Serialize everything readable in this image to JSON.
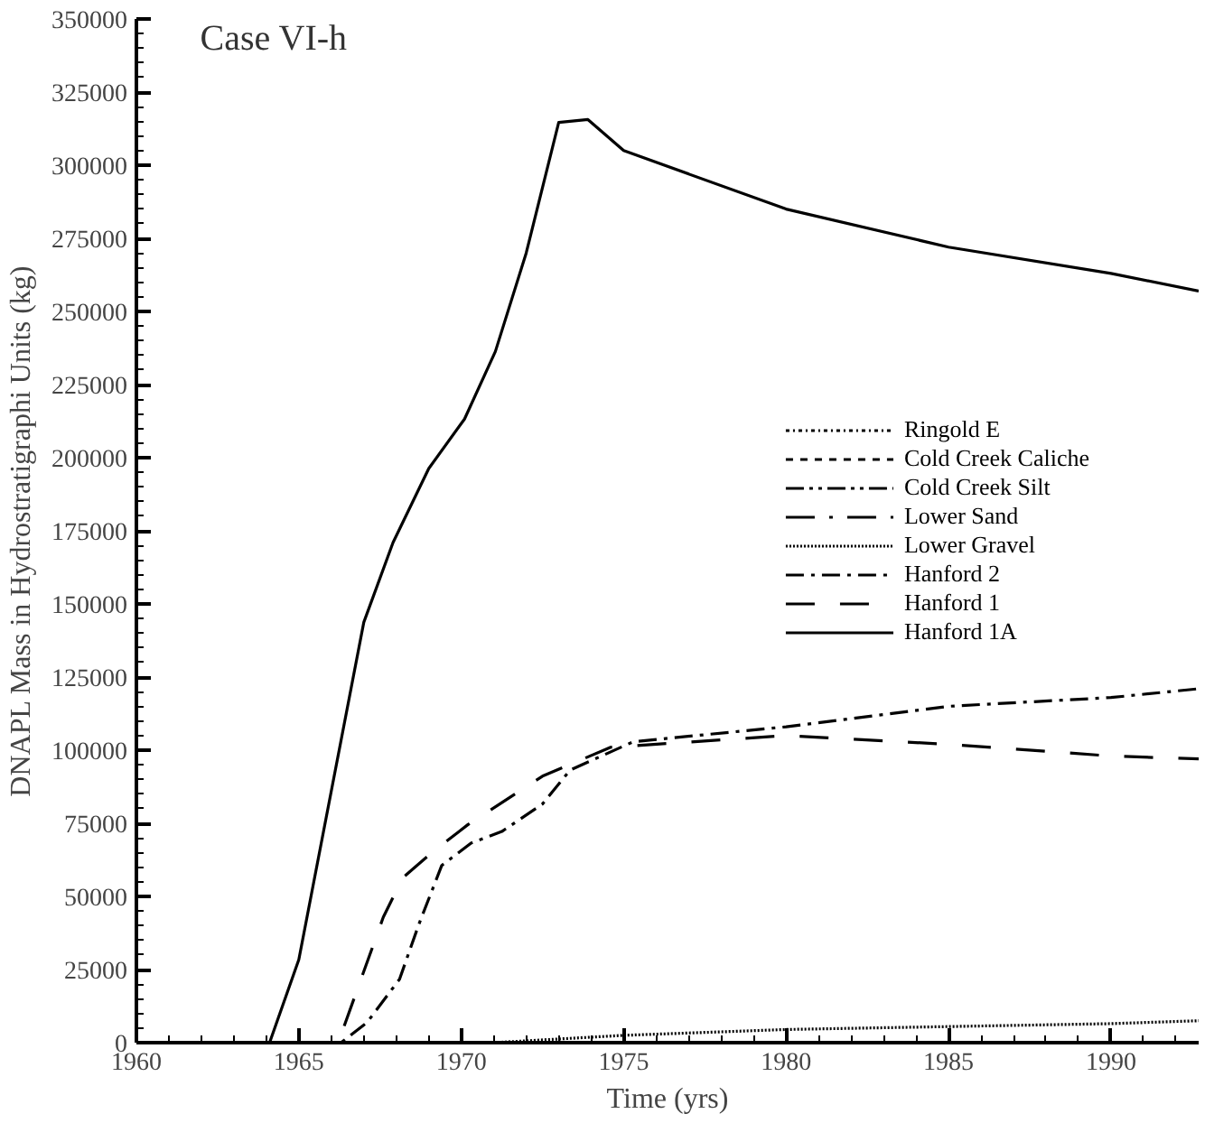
{
  "chart_data": {
    "type": "line",
    "title": "Case VI-h",
    "xlabel": "Time (yrs)",
    "ylabel": "DNAPL Mass in Hydrostratigraphi Units (kg)",
    "xlim": [
      1960,
      1992.7
    ],
    "xticks": [
      1960,
      1965,
      1970,
      1975,
      1980,
      1985,
      1990
    ],
    "ylim": [
      0,
      350000
    ],
    "yticks": [
      0,
      25000,
      50000,
      75000,
      100000,
      125000,
      150000,
      175000,
      200000,
      225000,
      250000,
      275000,
      300000,
      325000,
      350000
    ],
    "grid": false,
    "legend": "right",
    "marker": "none",
    "series": [
      {
        "name": "Ringold E",
        "color": "#000000",
        "line_style": "dotdash_fine"
      },
      {
        "name": "Cold Creek Caliche",
        "color": "#000000",
        "line_style": "dashed"
      },
      {
        "name": "Cold Creek Silt",
        "color": "#000000",
        "line_style": "dashdotdot"
      },
      {
        "name": "Lower Sand",
        "color": "#000000",
        "line_style": "longdash_dot"
      },
      {
        "name": "Lower Gravel",
        "color": "#000000",
        "line_style": "dotted",
        "x": [
          1960,
          1971,
          1975,
          1980,
          1985,
          1990,
          1992.7
        ],
        "values": [
          0,
          0,
          2500,
          4500,
          5500,
          6500,
          7500
        ]
      },
      {
        "name": "Hanford 2",
        "color": "#000000",
        "line_style": "dashdot",
        "x": [
          1960,
          1966.3,
          1967.1,
          1968.1,
          1968.7,
          1969.4,
          1970.3,
          1971.25,
          1972.5,
          1973.35,
          1975.3,
          1980,
          1985,
          1990,
          1992.7
        ],
        "values": [
          0,
          0,
          6900,
          21700,
          40600,
          60600,
          68200,
          72200,
          81600,
          93200,
          102900,
          108000,
          115000,
          118000,
          121000
        ]
      },
      {
        "name": "Hanford 1",
        "color": "#000000",
        "line_style": "longdash",
        "x": [
          1960,
          1966,
          1966.3,
          1967.6,
          1968.2,
          1969.1,
          1970.2,
          1972.5,
          1974.6,
          1980,
          1985,
          1990,
          1992.7
        ],
        "values": [
          0,
          0,
          2700,
          42900,
          56400,
          65000,
          74500,
          91100,
          101000,
          105000,
          102000,
          98000,
          97000
        ]
      },
      {
        "name": "Hanford 1A",
        "color": "#000000",
        "line_style": "solid",
        "x": [
          1960,
          1964.1,
          1965,
          1967,
          1967.9,
          1969,
          1970.1,
          1971.05,
          1972,
          1973,
          1973.9,
          1975,
          1980,
          1985,
          1990,
          1992.7
        ],
        "values": [
          0,
          0,
          28400,
          143700,
          171000,
          196300,
          213200,
          236300,
          270000,
          314600,
          315600,
          305000,
          285000,
          272000,
          263000,
          257000
        ]
      }
    ]
  }
}
